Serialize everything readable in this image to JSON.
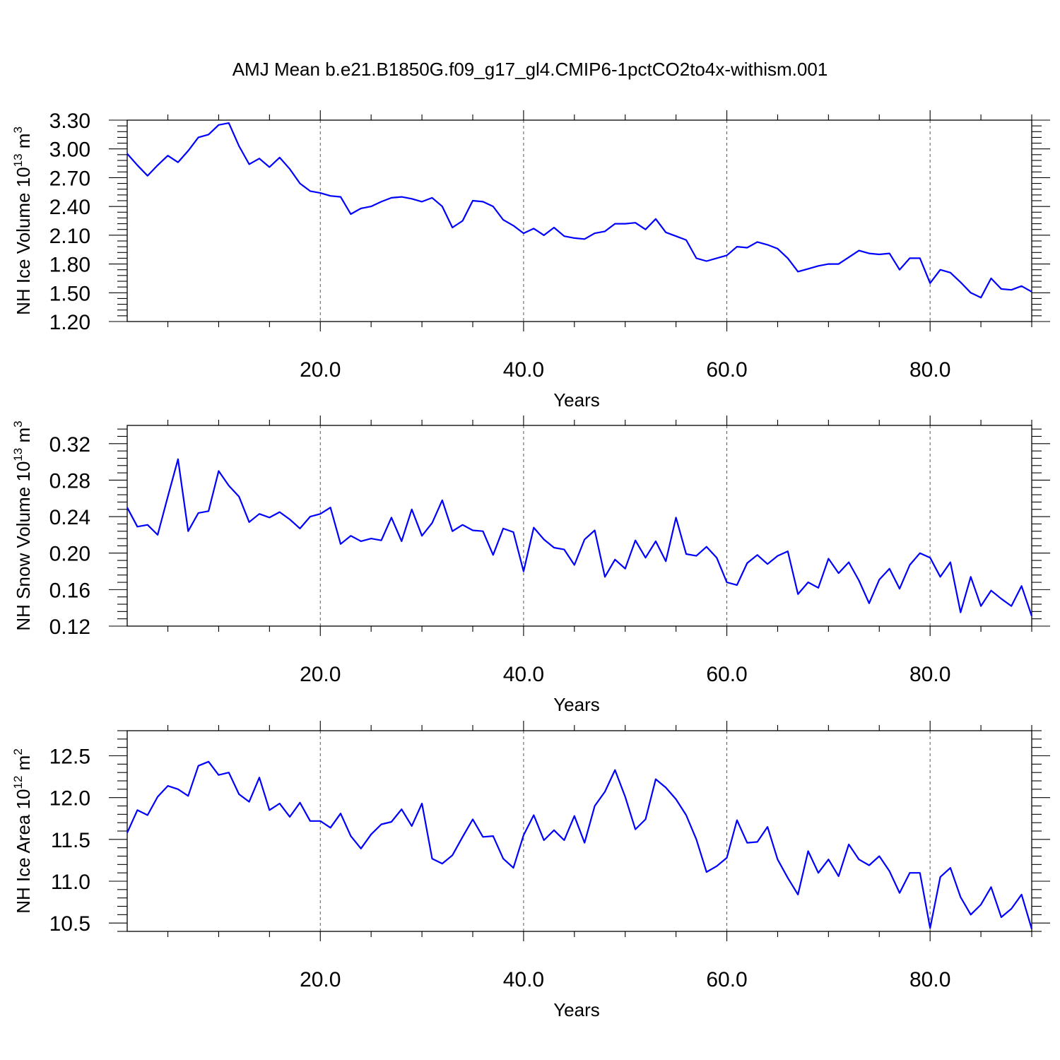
{
  "title": "AMJ Mean b.e21.B1850G.f09_g17_gl4.CMIP6-1pctCO2to4x-withism.001",
  "colors": {
    "series": "#0000ff",
    "axes": "#000000",
    "grid": "#555555"
  },
  "chart_data": [
    {
      "type": "line",
      "ylabel": {
        "main": "NH Ice Volume 10",
        "exp": "13",
        "unit": " m",
        "unit_exp": "3"
      },
      "xlabel": "Years",
      "xlim": [
        1,
        90
      ],
      "ylim": [
        1.2,
        3.3
      ],
      "x_ticks": [
        20,
        40,
        60,
        80
      ],
      "x_tick_labels": [
        "20.0",
        "40.0",
        "60.0",
        "80.0"
      ],
      "y_ticks": [
        1.2,
        1.5,
        1.8,
        2.1,
        2.4,
        2.7,
        3.0,
        3.3
      ],
      "y_tick_labels": [
        "1.20",
        "1.50",
        "1.80",
        "2.10",
        "2.40",
        "2.70",
        "3.00",
        "3.30"
      ],
      "grid": "vertical dashed at major x ticks",
      "series": [
        {
          "x_start": 1,
          "values": [
            2.95,
            2.83,
            2.72,
            2.83,
            2.93,
            2.86,
            2.98,
            3.12,
            3.15,
            3.25,
            3.27,
            3.03,
            2.84,
            2.9,
            2.81,
            2.91,
            2.79,
            2.64,
            2.56,
            2.54,
            2.51,
            2.5,
            2.32,
            2.38,
            2.4,
            2.45,
            2.49,
            2.5,
            2.48,
            2.45,
            2.49,
            2.4,
            2.18,
            2.25,
            2.46,
            2.45,
            2.4,
            2.26,
            2.2,
            2.12,
            2.17,
            2.1,
            2.18,
            2.09,
            2.07,
            2.06,
            2.12,
            2.14,
            2.22,
            2.22,
            2.23,
            2.16,
            2.27,
            2.13,
            2.09,
            2.05,
            1.86,
            1.83,
            1.86,
            1.89,
            1.98,
            1.97,
            2.03,
            2.0,
            1.96,
            1.86,
            1.72,
            1.75,
            1.78,
            1.8,
            1.8,
            1.87,
            1.94,
            1.91,
            1.9,
            1.91,
            1.74,
            1.86,
            1.86,
            1.6,
            1.74,
            1.71,
            1.61,
            1.5,
            1.45,
            1.65,
            1.54,
            1.53,
            1.57,
            1.51
          ]
        }
      ]
    },
    {
      "type": "line",
      "ylabel": {
        "main": "NH Snow Volume 10",
        "exp": "13",
        "unit": " m",
        "unit_exp": "3"
      },
      "xlabel": "Years",
      "xlim": [
        1,
        90
      ],
      "ylim": [
        0.12,
        0.34
      ],
      "x_ticks": [
        20,
        40,
        60,
        80
      ],
      "x_tick_labels": [
        "20.0",
        "40.0",
        "60.0",
        "80.0"
      ],
      "y_ticks": [
        0.12,
        0.16,
        0.2,
        0.24,
        0.28,
        0.32
      ],
      "y_tick_labels": [
        "0.12",
        "0.16",
        "0.20",
        "0.24",
        "0.28",
        "0.32"
      ],
      "grid": "vertical dashed at major x ticks",
      "series": [
        {
          "x_start": 1,
          "values": [
            0.25,
            0.229,
            0.231,
            0.22,
            0.262,
            0.303,
            0.224,
            0.244,
            0.246,
            0.29,
            0.274,
            0.262,
            0.234,
            0.243,
            0.239,
            0.245,
            0.237,
            0.227,
            0.24,
            0.243,
            0.25,
            0.21,
            0.219,
            0.213,
            0.216,
            0.214,
            0.239,
            0.213,
            0.248,
            0.219,
            0.233,
            0.258,
            0.224,
            0.231,
            0.225,
            0.224,
            0.198,
            0.227,
            0.223,
            0.18,
            0.228,
            0.215,
            0.206,
            0.204,
            0.187,
            0.215,
            0.225,
            0.174,
            0.193,
            0.183,
            0.214,
            0.195,
            0.213,
            0.191,
            0.239,
            0.199,
            0.197,
            0.207,
            0.195,
            0.168,
            0.165,
            0.189,
            0.198,
            0.188,
            0.197,
            0.202,
            0.155,
            0.168,
            0.162,
            0.194,
            0.178,
            0.19,
            0.17,
            0.145,
            0.171,
            0.183,
            0.161,
            0.187,
            0.2,
            0.195,
            0.174,
            0.19,
            0.135,
            0.174,
            0.142,
            0.159,
            0.15,
            0.142,
            0.164,
            0.131
          ]
        }
      ]
    },
    {
      "type": "line",
      "ylabel": {
        "main": "NH Ice Area 10",
        "exp": "12",
        "unit": " m",
        "unit_exp": "2"
      },
      "xlabel": "Years",
      "xlim": [
        1,
        90
      ],
      "ylim": [
        10.4,
        12.8
      ],
      "x_ticks": [
        20,
        40,
        60,
        80
      ],
      "x_tick_labels": [
        "20.0",
        "40.0",
        "60.0",
        "80.0"
      ],
      "y_ticks": [
        10.5,
        11.0,
        11.5,
        12.0,
        12.5
      ],
      "y_tick_labels": [
        "10.5",
        "11.0",
        "11.5",
        "12.0",
        "12.5"
      ],
      "grid": "vertical dashed at major x ticks",
      "series": [
        {
          "x_start": 1,
          "values": [
            11.58,
            11.85,
            11.79,
            12.01,
            12.14,
            12.1,
            12.02,
            12.38,
            12.43,
            12.27,
            12.3,
            12.04,
            11.95,
            12.24,
            11.85,
            11.93,
            11.77,
            11.94,
            11.72,
            11.72,
            11.64,
            11.81,
            11.54,
            11.39,
            11.56,
            11.68,
            11.71,
            11.86,
            11.66,
            11.93,
            11.27,
            11.21,
            11.31,
            11.53,
            11.74,
            11.53,
            11.54,
            11.27,
            11.16,
            11.55,
            11.79,
            11.49,
            11.61,
            11.49,
            11.78,
            11.46,
            11.9,
            12.07,
            12.33,
            12.01,
            11.62,
            11.74,
            12.22,
            12.12,
            11.98,
            11.79,
            11.5,
            11.11,
            11.18,
            11.28,
            11.73,
            11.46,
            11.47,
            11.65,
            11.26,
            11.04,
            10.84,
            11.36,
            11.1,
            11.26,
            11.06,
            11.44,
            11.26,
            11.19,
            11.3,
            11.12,
            10.86,
            11.1,
            11.1,
            10.44,
            11.05,
            11.16,
            10.81,
            10.6,
            10.72,
            10.93,
            10.57,
            10.67,
            10.84,
            10.43
          ]
        }
      ]
    }
  ]
}
